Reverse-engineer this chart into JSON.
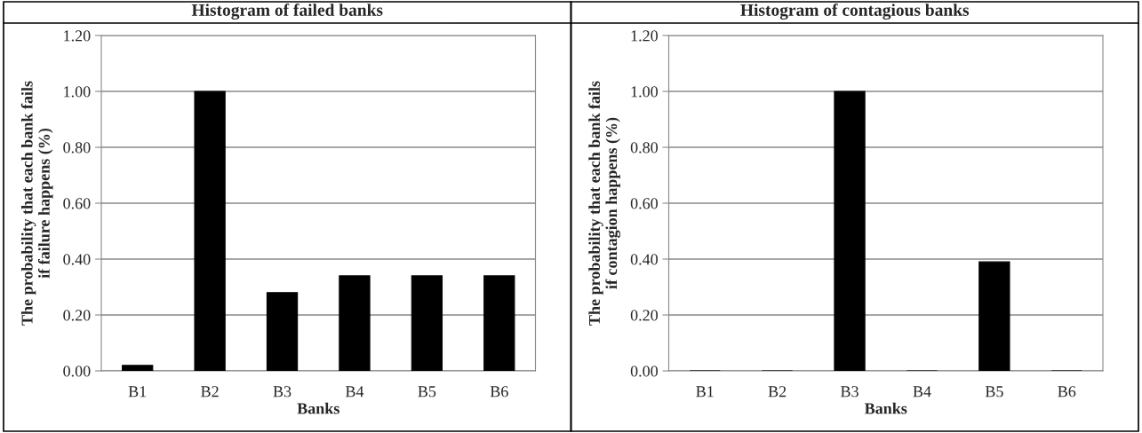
{
  "chart_data": [
    {
      "type": "bar",
      "title": "Histogram of failed banks",
      "xlabel": "Banks",
      "ylabel": "The probability that each bank fails\nif failure happens (%)",
      "categories": [
        "B1",
        "B2",
        "B3",
        "B4",
        "B5",
        "B6"
      ],
      "values": [
        0.02,
        1.0,
        0.28,
        0.34,
        0.34,
        0.34
      ],
      "color": "#000000",
      "ylim": [
        0,
        1.2
      ],
      "yticks": [
        {
          "value": 0,
          "label": "0.00"
        },
        {
          "value": 0.2,
          "label": "0.20"
        },
        {
          "value": 0.4,
          "label": "0.40"
        },
        {
          "value": 0.6,
          "label": "0.60"
        },
        {
          "value": 0.8,
          "label": "0.80"
        },
        {
          "value": 1.0,
          "label": "1.00"
        },
        {
          "value": 1.2,
          "label": "1.20"
        }
      ],
      "grid": "y"
    },
    {
      "type": "bar",
      "title": "Histogram of contagious banks",
      "xlabel": "Banks",
      "ylabel": "The probability that each bank fails\nif contagion happens (%)",
      "categories": [
        "B1",
        "B2",
        "B3",
        "B4",
        "B5",
        "B6"
      ],
      "values": [
        0,
        0,
        1.0,
        0,
        0.39,
        0
      ],
      "color": "#000000",
      "ylim": [
        0,
        1.2
      ],
      "yticks": [
        {
          "value": 0,
          "label": "0.00"
        },
        {
          "value": 0.2,
          "label": "0.20"
        },
        {
          "value": 0.4,
          "label": "0.40"
        },
        {
          "value": 0.6,
          "label": "0.60"
        },
        {
          "value": 0.8,
          "label": "0.80"
        },
        {
          "value": 1.0,
          "label": "1.00"
        },
        {
          "value": 1.2,
          "label": "1.20"
        }
      ],
      "grid": "y"
    }
  ]
}
